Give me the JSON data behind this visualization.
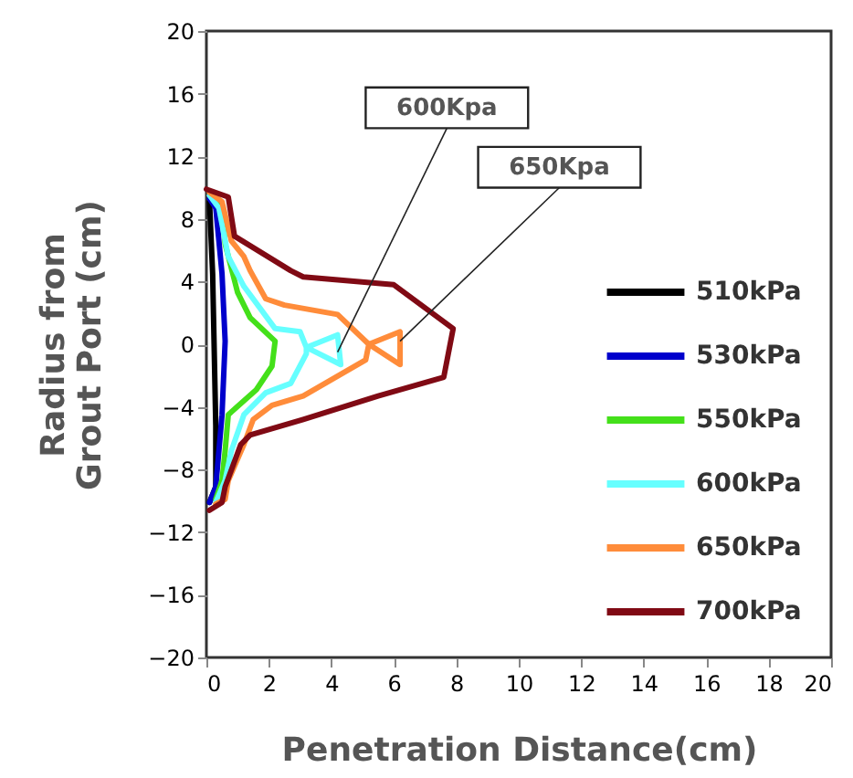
{
  "chart_data": {
    "type": "line",
    "xlabel": "Penetration Distance(cm)",
    "ylabel": "Radius from\nGrout Port (cm)",
    "xlim": [
      0,
      20
    ],
    "xticks": [
      0,
      2,
      4,
      6,
      8,
      10,
      12,
      14,
      16,
      18,
      20
    ],
    "ylim": [
      -20,
      20
    ],
    "yticks": [
      -20,
      -16,
      -12,
      -8,
      -4,
      0,
      4,
      8,
      12,
      16,
      20
    ],
    "grid": false,
    "legend": "right",
    "line_style": "solid",
    "marker": "none",
    "annotations": [
      {
        "text": "600Kpa",
        "x": 4.2,
        "y": -0.5
      },
      {
        "text": "650Kpa",
        "x": 6.2,
        "y": 0.2
      }
    ],
    "series": [
      {
        "name": "510kPa",
        "color": "#000000",
        "x": [
          0.1,
          0.2,
          0.3,
          0.3,
          0.1
        ],
        "values": [
          9.1,
          4.5,
          -5.2,
          -9.1,
          -10.1
        ]
      },
      {
        "name": "530kPa",
        "color": "#0000cc",
        "x": [
          0.1,
          0.3,
          0.5,
          0.6,
          0.5,
          0.3,
          0.1
        ],
        "values": [
          9.3,
          8.7,
          4.5,
          0.2,
          -4.5,
          -9.1,
          -10.1
        ]
      },
      {
        "name": "550kPa",
        "color": "#44e01a",
        "x": [
          0.2,
          0.5,
          0.6,
          1.0,
          1.4,
          2.2,
          2.1,
          1.6,
          0.7,
          0.6,
          0.5,
          0.3
        ],
        "values": [
          9.5,
          8.7,
          6.4,
          3.3,
          1.7,
          0.2,
          -1.4,
          -2.9,
          -4.5,
          -6.8,
          -8.7,
          -9.9
        ]
      },
      {
        "name": "600kPa",
        "color": "#66ffff",
        "x": [
          0.1,
          0.4,
          0.7,
          1.2,
          2.2,
          3.0,
          3.2,
          4.2,
          4.3,
          3.2,
          3.2,
          2.7,
          1.9,
          1.2,
          0.8,
          0.6,
          0.3
        ],
        "values": [
          9.5,
          8.7,
          5.6,
          3.7,
          1.0,
          0.8,
          -0.2,
          0.6,
          -1.3,
          -0.2,
          -0.6,
          -2.5,
          -3.1,
          -4.5,
          -6.8,
          -8.7,
          -10.1
        ]
      },
      {
        "name": "650kPa",
        "color": "#ff8c3a",
        "x": [
          0.1,
          0.5,
          0.8,
          1.2,
          1.4,
          1.9,
          2.5,
          4.2,
          5.2,
          6.2,
          6.2,
          5.2,
          5.1,
          3.1,
          2.1,
          1.5,
          1.2,
          0.7,
          0.6,
          0.3
        ],
        "values": [
          9.7,
          9.1,
          6.6,
          5.6,
          4.7,
          2.9,
          2.5,
          1.9,
          0.0,
          0.8,
          -1.3,
          0.0,
          -1.0,
          -3.3,
          -3.9,
          -4.8,
          -6.4,
          -8.7,
          -9.9,
          -10.2
        ]
      },
      {
        "name": "700kPa",
        "color": "#800a14",
        "x": [
          0.0,
          0.7,
          0.9,
          2.7,
          3.1,
          6.0,
          7.9,
          7.6,
          5.5,
          3.1,
          1.4,
          1.1,
          0.6,
          0.5,
          0.1
        ],
        "values": [
          9.9,
          9.4,
          6.9,
          4.7,
          4.3,
          3.8,
          1.0,
          -2.1,
          -3.3,
          -4.8,
          -5.8,
          -6.4,
          -9.1,
          -10.1,
          -10.6
        ]
      }
    ]
  }
}
